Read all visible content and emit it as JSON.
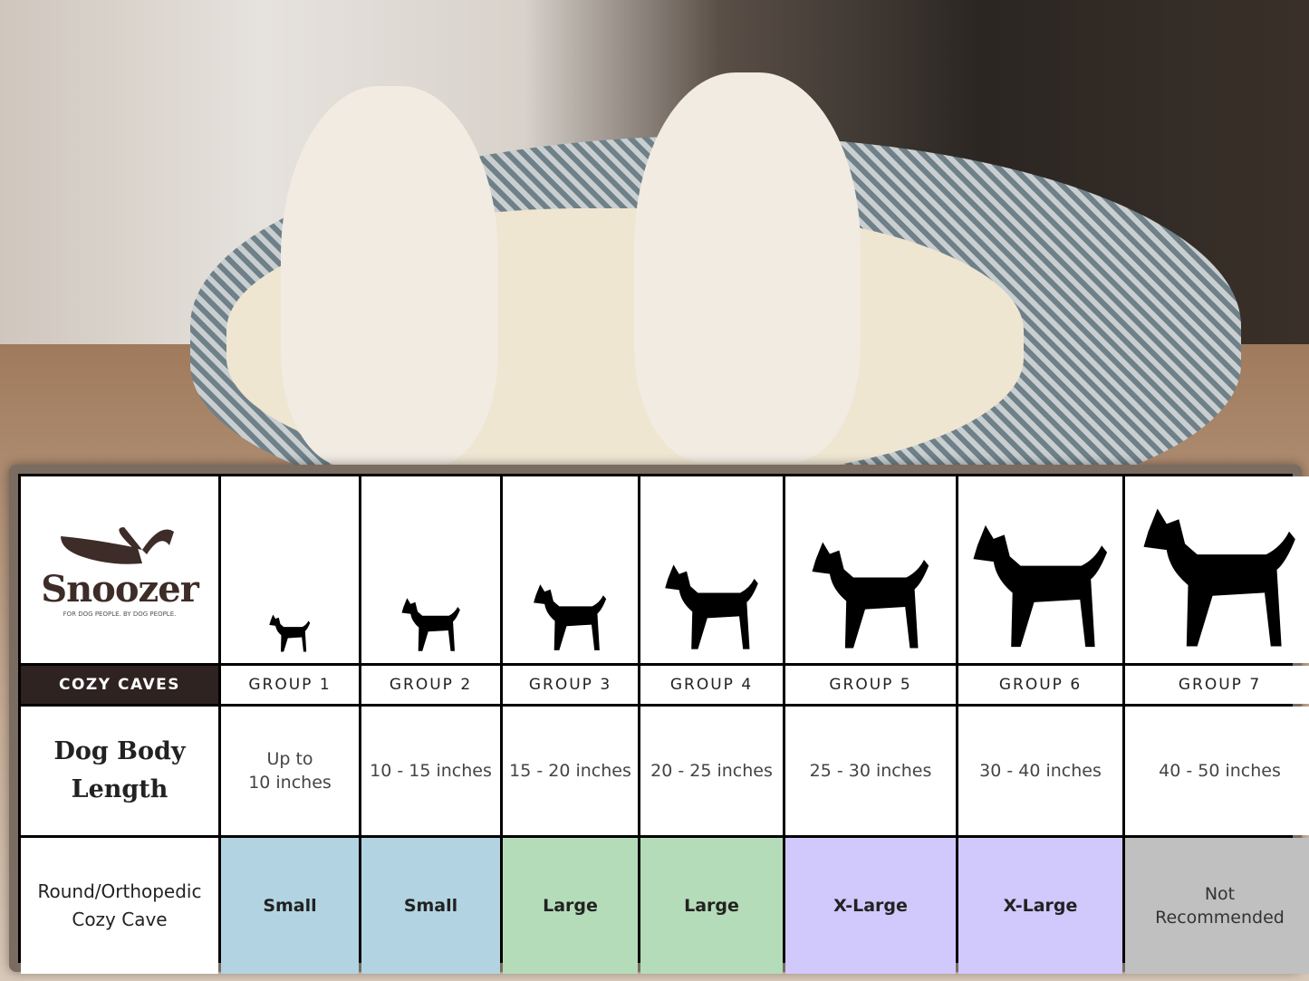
{
  "brand": {
    "name": "Snoozer",
    "tagline": "FOR DOG PEOPLE. BY DOG PEOPLE."
  },
  "product_label": "COZY CAVES",
  "row_labels": {
    "length": "Dog Body\nLength",
    "bed": "Round/Orthopedic\nCozy Cave"
  },
  "groups": [
    {
      "name": "GROUP 1",
      "length": "Up to\n10 inches",
      "size": "Small",
      "color": "#b2d4e2",
      "icon": "chihuahua-silhouette"
    },
    {
      "name": "GROUP 2",
      "length": "10 - 15 inches",
      "size": "Small",
      "color": "#b2d4e2",
      "icon": "pomeranian-silhouette"
    },
    {
      "name": "GROUP 3",
      "length": "15 - 20 inches",
      "size": "Large",
      "color": "#b4dcb8",
      "icon": "boston-terrier-silhouette"
    },
    {
      "name": "GROUP 4",
      "length": "20 - 25 inches",
      "size": "Large",
      "color": "#b4dcb8",
      "icon": "shiba-silhouette"
    },
    {
      "name": "GROUP 5",
      "length": "25 - 30 inches",
      "size": "X-Large",
      "color": "#d1c8fc",
      "icon": "golden-retriever-silhouette"
    },
    {
      "name": "GROUP 6",
      "length": "30 - 40 inches",
      "size": "X-Large",
      "color": "#d1c8fc",
      "icon": "doberman-silhouette"
    },
    {
      "name": "GROUP 7",
      "length": "40 - 50 inches",
      "size": "Not\nRecommended",
      "color": "#c0c0c0",
      "icon": "great-dane-silhouette"
    }
  ]
}
